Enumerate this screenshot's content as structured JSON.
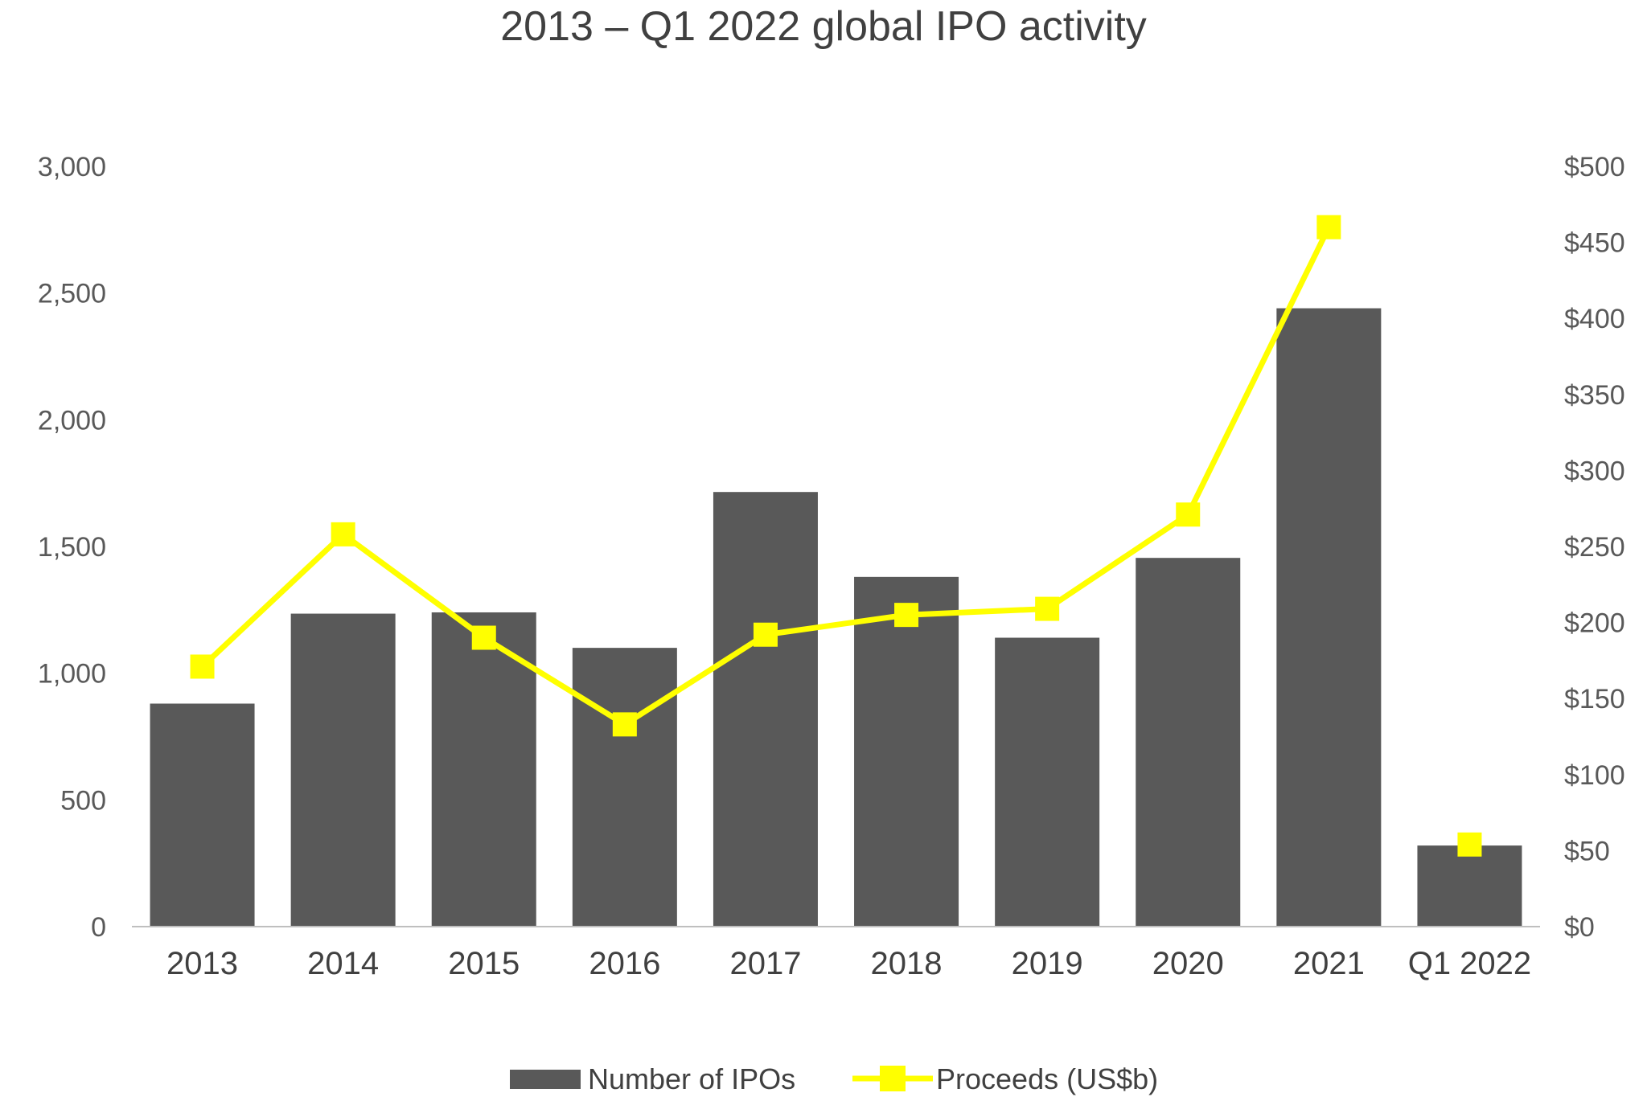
{
  "chart_data": {
    "type": "bar",
    "title": "2013 – Q1 2022 global IPO activity",
    "categories": [
      "2013",
      "2014",
      "2015",
      "2016",
      "2017",
      "2018",
      "2019",
      "2020",
      "2021",
      "Q1 2022"
    ],
    "series": [
      {
        "name": "Number of IPOs",
        "type": "bar",
        "axis": "left",
        "color": "#595959",
        "values": [
          880,
          1235,
          1240,
          1100,
          1715,
          1380,
          1140,
          1455,
          2440,
          320
        ]
      },
      {
        "name": "Proceeds (US$b)",
        "type": "line",
        "axis": "right",
        "color": "#FFFF00",
        "marker": "square",
        "values": [
          171,
          258,
          190,
          133,
          192,
          205,
          209,
          271,
          460,
          54
        ]
      }
    ],
    "y_left": {
      "min": 0,
      "max": 3000,
      "ticks": [
        0,
        500,
        1000,
        1500,
        2000,
        2500,
        3000
      ],
      "tick_labels": [
        "0",
        "500",
        "1,000",
        "1,500",
        "2,000",
        "2,500",
        "3,000"
      ]
    },
    "y_right": {
      "min": 0,
      "max": 500,
      "ticks": [
        0,
        50,
        100,
        150,
        200,
        250,
        300,
        350,
        400,
        450,
        500
      ],
      "tick_labels": [
        "$0",
        "$50",
        "$100",
        "$150",
        "$200",
        "$250",
        "$300",
        "$350",
        "$400",
        "$450",
        "$500"
      ]
    },
    "grid": false,
    "legend": {
      "position": "bottom",
      "entries": [
        "Number of IPOs",
        "Proceeds (US$b)"
      ]
    }
  }
}
